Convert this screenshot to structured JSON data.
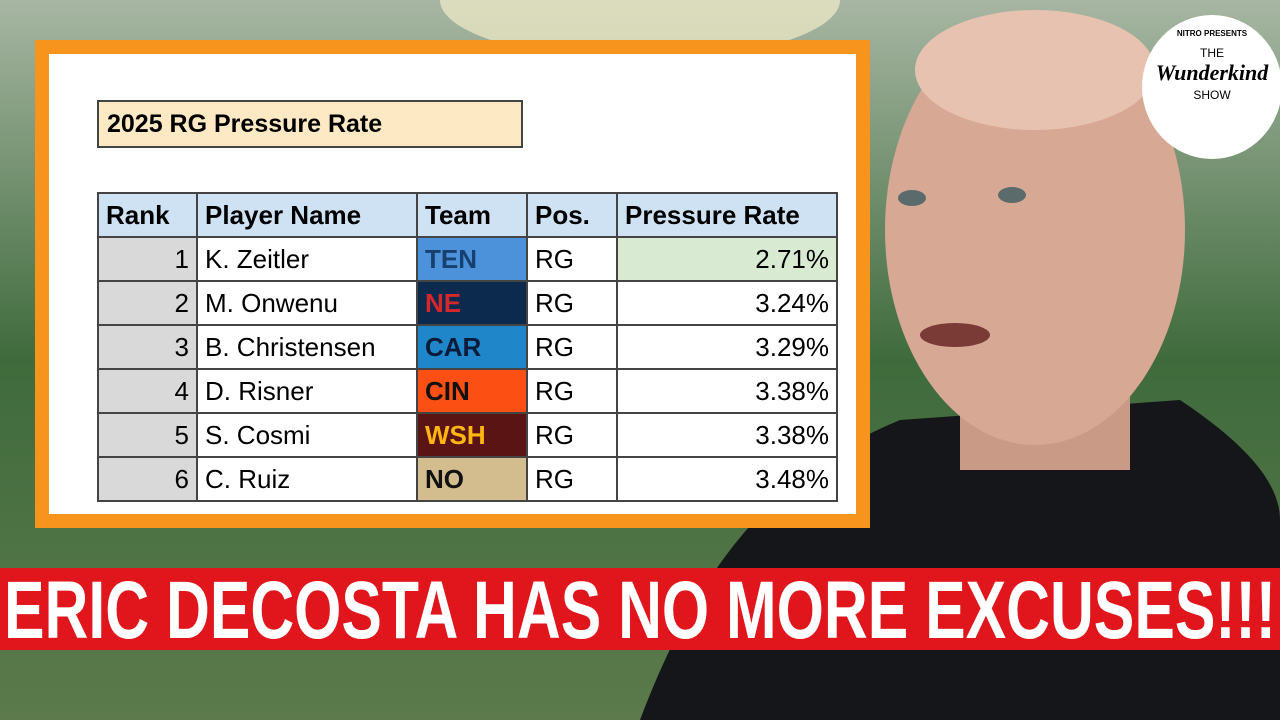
{
  "logo": {
    "presenter": "NITRO PRESENTS",
    "the": "THE",
    "name": "Wunderkind",
    "show": "SHOW"
  },
  "table": {
    "title": "2025 RG Pressure Rate",
    "columns": [
      "Rank",
      "Player Name",
      "Team",
      "Pos.",
      "Pressure Rate"
    ],
    "rows": [
      [
        "1",
        "K. Zeitler",
        "TEN",
        "RG",
        "2.71%"
      ],
      [
        "2",
        "M. Onwenu",
        "NE",
        "RG",
        "3.24%"
      ],
      [
        "3",
        "B. Christensen",
        "CAR",
        "RG",
        "3.29%"
      ],
      [
        "4",
        "D. Risner",
        "CIN",
        "RG",
        "3.38%"
      ],
      [
        "5",
        "S. Cosmi",
        "WSH",
        "RG",
        "3.38%"
      ],
      [
        "6",
        "C. Ruiz",
        "NO",
        "RG",
        "3.48%"
      ]
    ]
  },
  "banner": {
    "text": "ERIC DECOSTA HAS NO MORE EXCUSES!!!"
  }
}
